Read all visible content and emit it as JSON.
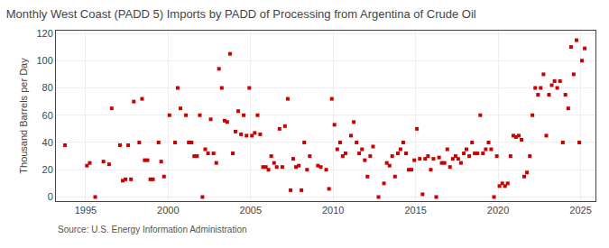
{
  "chart_data": {
    "type": "scatter",
    "title": "Monthly West Coast (PADD 5) Imports by PADD of Processing from Argentina of Crude Oil",
    "ylabel": "Thousand Barrels per Day",
    "annotations": [
      "Source: U.S. Energy Information Administration"
    ],
    "color": "#cc0000",
    "marker": "square",
    "grid": true,
    "xlim": [
      1993.2,
      2025.9
    ],
    "ylim": [
      -3,
      122
    ],
    "xticks": [
      1995,
      2000,
      2005,
      2010,
      2015,
      2020,
      2025
    ],
    "yticks": [
      0,
      20,
      40,
      60,
      80,
      100,
      120
    ],
    "x": [
      1993.75,
      1995.08,
      1995.25,
      1995.58,
      1996.08,
      1996.42,
      1996.58,
      1997.08,
      1997.25,
      1997.42,
      1997.58,
      1997.75,
      1997.92,
      1998.25,
      1998.42,
      1998.58,
      1998.75,
      1998.92,
      1999.08,
      1999.42,
      1999.58,
      1999.75,
      2000.08,
      2000.42,
      2000.58,
      2000.75,
      2001.08,
      2001.25,
      2001.42,
      2001.58,
      2001.75,
      2001.92,
      2002.08,
      2002.25,
      2002.42,
      2002.58,
      2002.75,
      2002.92,
      2003.08,
      2003.25,
      2003.42,
      2003.58,
      2003.75,
      2003.92,
      2004.08,
      2004.25,
      2004.42,
      2004.58,
      2004.75,
      2004.92,
      2005.08,
      2005.25,
      2005.42,
      2005.58,
      2005.75,
      2005.92,
      2006.08,
      2006.25,
      2006.42,
      2006.58,
      2006.75,
      2006.92,
      2007.08,
      2007.25,
      2007.42,
      2007.58,
      2007.75,
      2007.92,
      2008.08,
      2008.25,
      2008.42,
      2008.58,
      2009.08,
      2009.25,
      2009.58,
      2009.75,
      2009.92,
      2010.08,
      2010.25,
      2010.42,
      2010.58,
      2010.75,
      2011.08,
      2011.25,
      2011.42,
      2011.58,
      2011.75,
      2011.92,
      2012.08,
      2012.25,
      2012.42,
      2012.75,
      2013.08,
      2013.25,
      2013.42,
      2013.58,
      2013.75,
      2013.92,
      2014.08,
      2014.25,
      2014.42,
      2014.58,
      2014.75,
      2014.92,
      2015.08,
      2015.25,
      2015.42,
      2015.58,
      2015.75,
      2015.92,
      2016.08,
      2016.25,
      2016.42,
      2016.58,
      2016.75,
      2016.92,
      2017.08,
      2017.25,
      2017.42,
      2017.58,
      2017.75,
      2017.92,
      2018.08,
      2018.25,
      2018.42,
      2018.58,
      2018.75,
      2018.92,
      2019.08,
      2019.25,
      2019.42,
      2019.58,
      2019.75,
      2019.92,
      2020.08,
      2020.25,
      2020.42,
      2020.58,
      2020.75,
      2020.92,
      2021.08,
      2021.25,
      2021.42,
      2021.58,
      2021.75,
      2021.92,
      2022.08,
      2022.25,
      2022.42,
      2022.58,
      2022.75,
      2022.92,
      2023.08,
      2023.25,
      2023.42,
      2023.58,
      2023.75,
      2023.92,
      2024.08,
      2024.25,
      2024.42,
      2024.58,
      2024.75,
      2024.92,
      2025.08,
      2025.25
    ],
    "values": [
      38,
      23,
      25,
      0,
      26,
      24,
      65,
      38,
      12,
      13,
      38,
      13,
      70,
      40,
      72,
      27,
      27,
      13,
      13,
      40,
      26,
      15,
      60,
      40,
      80,
      65,
      60,
      40,
      40,
      30,
      30,
      60,
      0,
      35,
      32,
      57,
      32,
      25,
      94,
      80,
      56,
      55,
      105,
      32,
      48,
      63,
      46,
      60,
      45,
      80,
      45,
      47,
      60,
      46,
      22,
      22,
      20,
      30,
      25,
      22,
      50,
      22,
      52,
      72,
      5,
      28,
      22,
      23,
      5,
      40,
      20,
      30,
      23,
      22,
      20,
      6,
      72,
      53,
      35,
      40,
      30,
      32,
      45,
      55,
      40,
      32,
      35,
      27,
      15,
      30,
      37,
      0,
      10,
      25,
      23,
      30,
      15,
      32,
      35,
      40,
      32,
      20,
      20,
      27,
      50,
      28,
      2,
      28,
      30,
      20,
      28,
      0,
      29,
      25,
      25,
      35,
      22,
      28,
      30,
      28,
      25,
      32,
      35,
      30,
      40,
      32,
      32,
      60,
      32,
      35,
      40,
      35,
      0,
      30,
      8,
      10,
      8,
      10,
      30,
      45,
      44,
      45,
      42,
      15,
      18,
      30,
      60,
      80,
      75,
      80,
      90,
      45,
      75,
      82,
      85,
      80,
      85,
      40,
      75,
      65,
      110,
      90,
      115,
      40,
      100,
      109
    ]
  }
}
